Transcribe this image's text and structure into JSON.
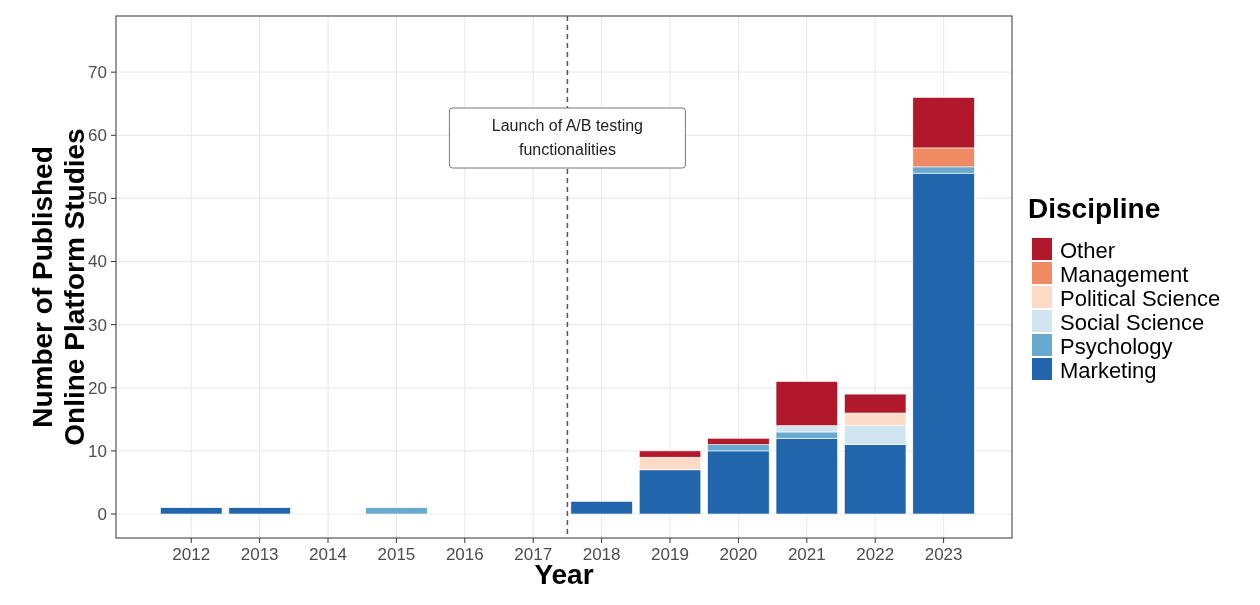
{
  "chart_data": {
    "type": "bar",
    "stacked": true,
    "x": [
      2012,
      2013,
      2014,
      2015,
      2016,
      2017,
      2018,
      2019,
      2020,
      2021,
      2022,
      2023
    ],
    "series": [
      {
        "name": "Marketing",
        "color": "#2166ac",
        "values": [
          1,
          1,
          null,
          null,
          null,
          null,
          2,
          7,
          10,
          12,
          11,
          54
        ]
      },
      {
        "name": "Psychology",
        "color": "#67a9cf",
        "values": [
          null,
          null,
          null,
          1,
          null,
          null,
          null,
          null,
          1,
          1,
          null,
          1
        ]
      },
      {
        "name": "Social Science",
        "color": "#d1e5f0",
        "values": [
          null,
          null,
          null,
          null,
          null,
          null,
          null,
          null,
          null,
          1,
          3,
          null
        ]
      },
      {
        "name": "Political Science",
        "color": "#fddbc7",
        "values": [
          null,
          null,
          null,
          null,
          null,
          null,
          null,
          2,
          null,
          null,
          2,
          null
        ]
      },
      {
        "name": "Management",
        "color": "#ef8a62",
        "values": [
          null,
          null,
          null,
          null,
          null,
          null,
          null,
          null,
          null,
          null,
          null,
          3
        ]
      },
      {
        "name": "Other",
        "color": "#b2182b",
        "values": [
          null,
          null,
          null,
          null,
          null,
          null,
          null,
          1,
          1,
          7,
          3,
          8
        ]
      }
    ],
    "xlabel": "Year",
    "ylabel": "Number of Published Online Platform Studies",
    "legend_title": "Discipline",
    "legend": "right",
    "xlim": [
      2010.9,
      2024.0
    ],
    "xticks": [
      2012,
      2013,
      2014,
      2015,
      2016,
      2017,
      2018,
      2019,
      2020,
      2021,
      2022,
      2023
    ],
    "ylim": [
      -3.8,
      78.9
    ],
    "yticks": [
      0,
      10,
      20,
      30,
      40,
      50,
      60,
      70
    ],
    "grid": true,
    "ref_lines": [
      {
        "axis": "x",
        "value": 2017.5,
        "label": "Launch of A/B testing functionalities",
        "color": "#555555",
        "line_style": "dashed"
      }
    ]
  }
}
